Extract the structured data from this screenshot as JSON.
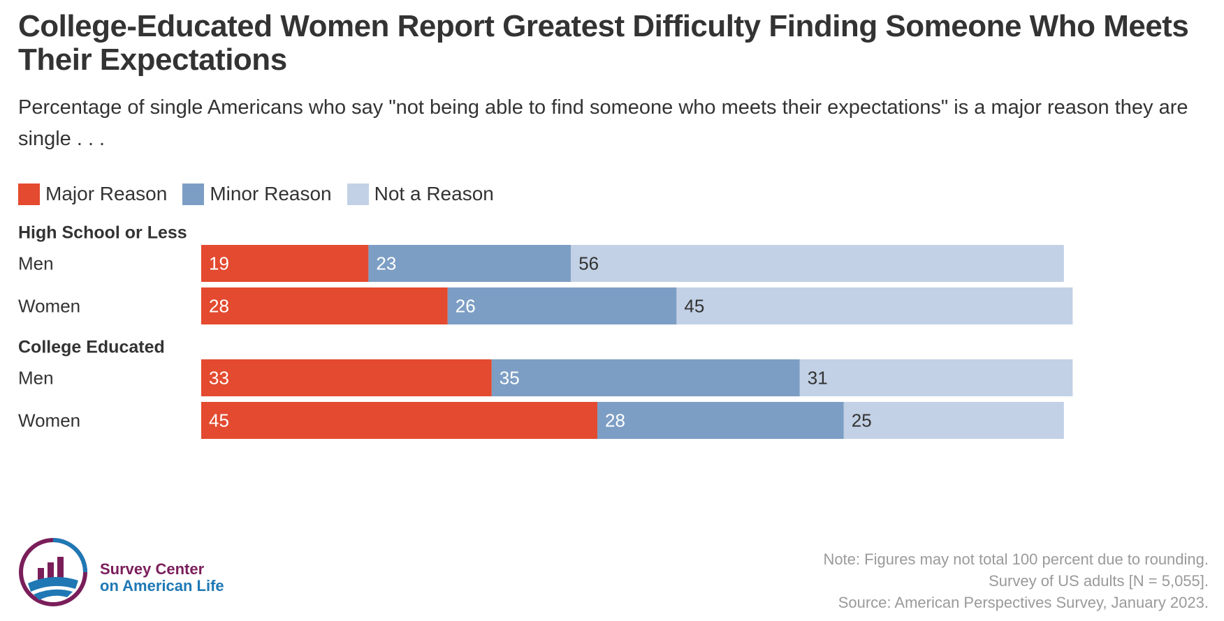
{
  "title": "College-Educated Women Report Greatest Difficulty Finding Someone Who Meets Their Expectations",
  "subtitle": "Percentage of single Americans who say \"not being able to find someone who meets their expectations\" is a major reason they are single . . .",
  "legend": [
    {
      "label": "Major Reason",
      "color": "#e34a2f"
    },
    {
      "label": "Minor Reason",
      "color": "#7d9ec4"
    },
    {
      "label": "Not a Reason",
      "color": "#c2d1e5"
    }
  ],
  "chart_data": {
    "type": "bar",
    "orientation": "horizontal",
    "stacked": true,
    "series": [
      {
        "name": "Major Reason",
        "color": "#e34a2f",
        "label_color": "#ffffff"
      },
      {
        "name": "Minor Reason",
        "color": "#7d9ec4",
        "label_color": "#ffffff"
      },
      {
        "name": "Not a Reason",
        "color": "#c2d1e5",
        "label_color": "#333333"
      }
    ],
    "groups": [
      {
        "label": "High School or Less",
        "rows": [
          {
            "label": "Men",
            "values": [
              19,
              23,
              56
            ]
          },
          {
            "label": "Women",
            "values": [
              28,
              26,
              45
            ]
          }
        ]
      },
      {
        "label": "College Educated",
        "rows": [
          {
            "label": "Men",
            "values": [
              33,
              35,
              31
            ]
          },
          {
            "label": "Women",
            "values": [
              45,
              28,
              25
            ]
          }
        ]
      }
    ],
    "xlim": [
      0,
      100
    ]
  },
  "logo": {
    "line1": "Survey Center",
    "line2": "on American Life"
  },
  "notes": [
    "Note: Figures may not total 100 percent due to rounding.",
    "Survey of US adults [N = 5,055].",
    "Source: American Perspectives Survey, January 2023."
  ]
}
